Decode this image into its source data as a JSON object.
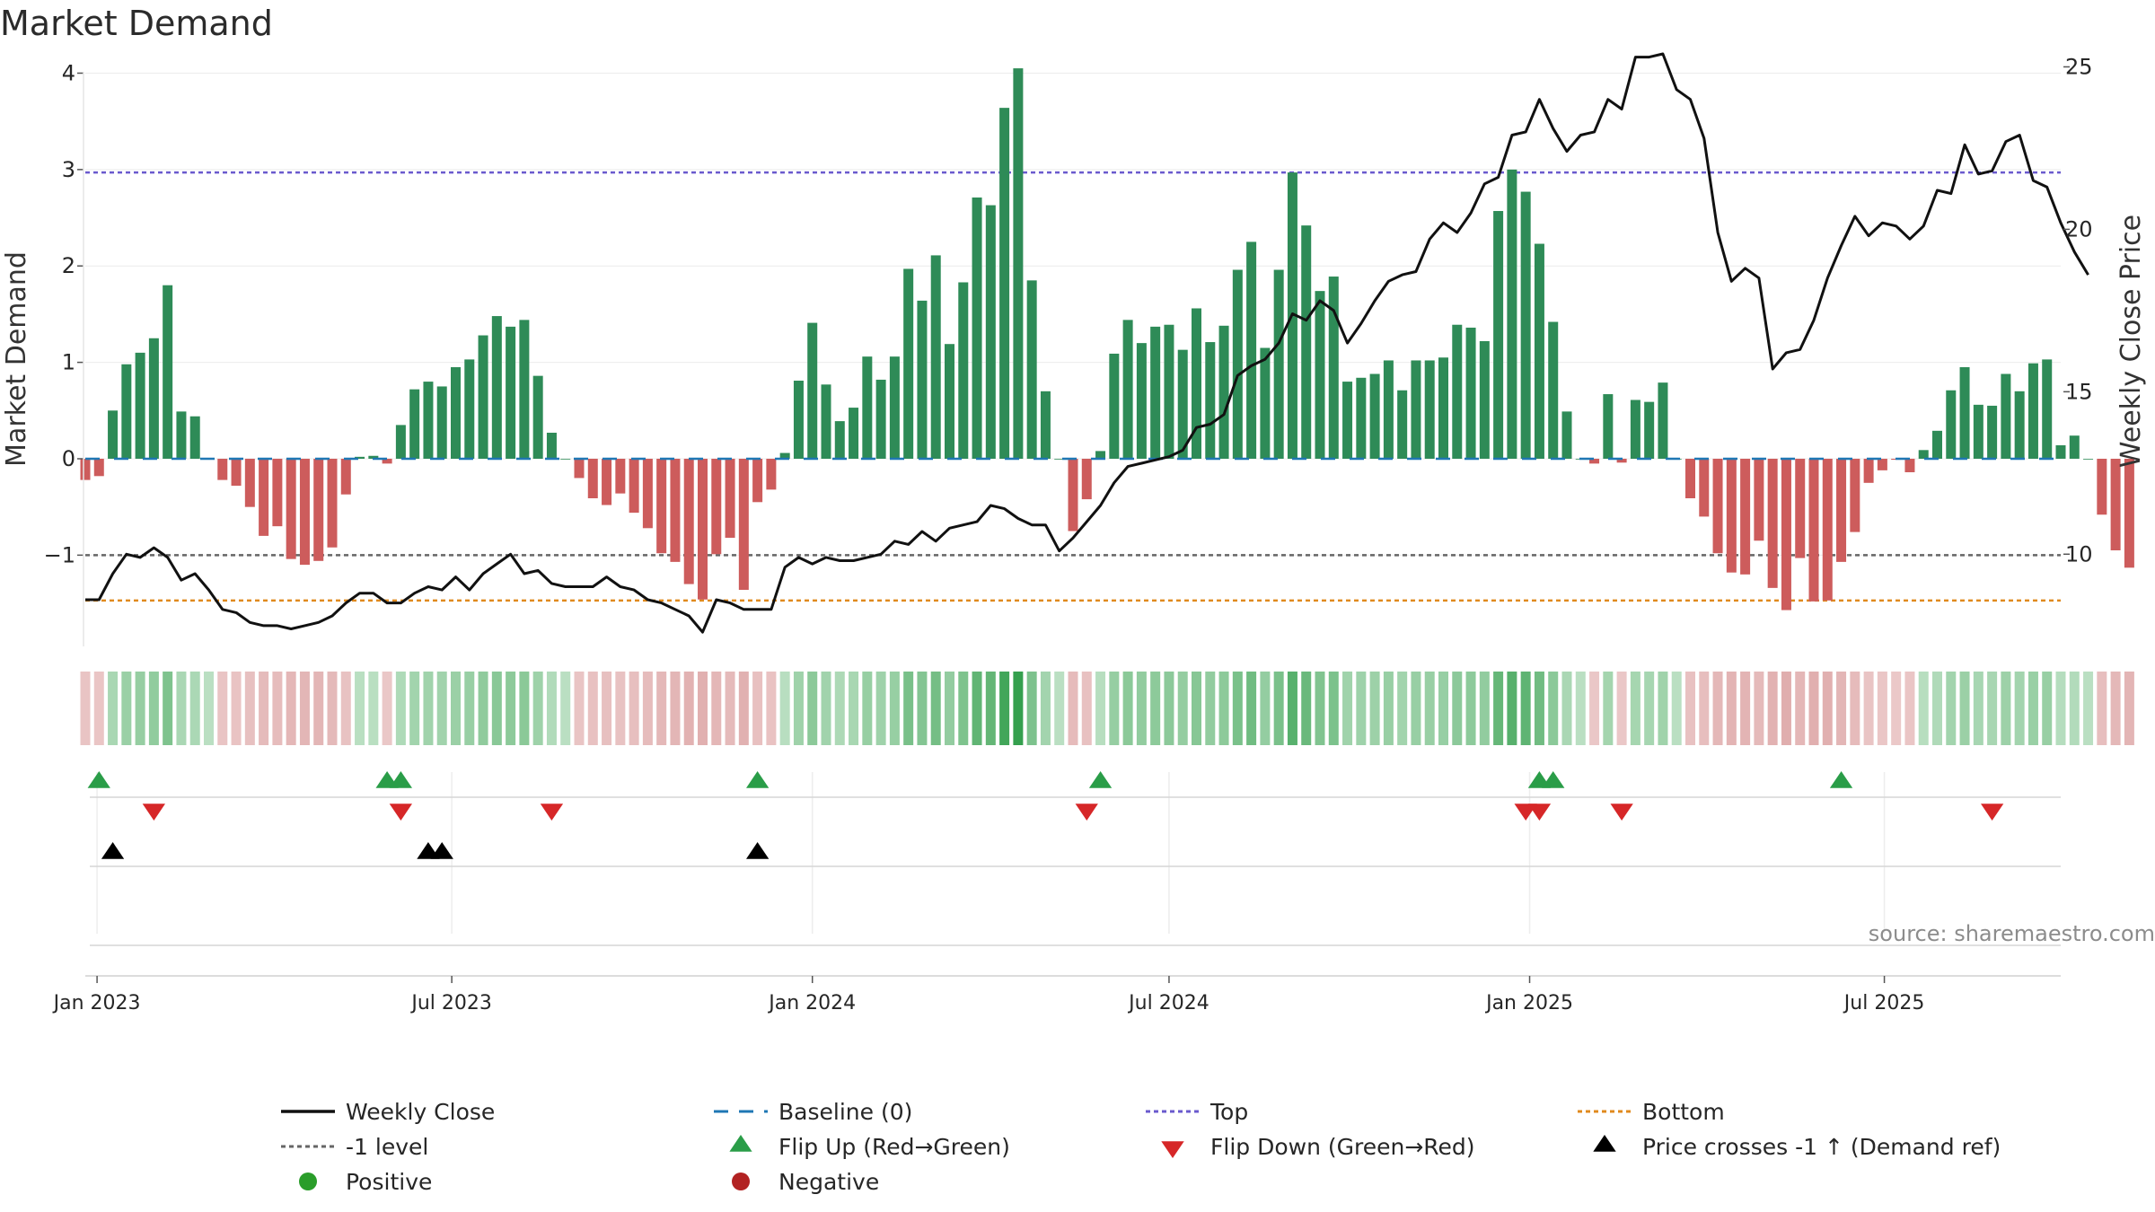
{
  "title": "Market Demand",
  "colors": {
    "positive": "#2e8b57",
    "negative": "#cd5c5c",
    "price": "#111111",
    "top": "#6a5acd",
    "bottom": "#e08a1e",
    "neg1": "#666666",
    "baseline": "#1f77b4",
    "flip_up": "#2a9d48",
    "flip_down": "#d62728",
    "cross": "#000000",
    "legend_positive": "#2a9d2a",
    "legend_negative": "#b22222"
  },
  "chart_data": {
    "type": "bar",
    "title": "Market Demand",
    "ylabel": "Market Demand",
    "y2label": "Weekly Close Price",
    "ylim": [
      -1.9,
      4.2
    ],
    "y2lim": [
      7.3,
      25.4
    ],
    "yticks": [
      -1,
      0,
      1,
      2,
      3,
      4
    ],
    "y2ticks": [
      10,
      15,
      20,
      25
    ],
    "x_start": "2022-12-26",
    "x_end": "2025-09-29",
    "xticks": [
      {
        "date": "2023-01-01",
        "label": "Jan 2023"
      },
      {
        "date": "2023-07-01",
        "label": "Jul 2023"
      },
      {
        "date": "2024-01-01",
        "label": "Jan 2024"
      },
      {
        "date": "2024-07-01",
        "label": "Jul 2024"
      },
      {
        "date": "2025-01-01",
        "label": "Jan 2025"
      },
      {
        "date": "2025-07-01",
        "label": "Jul 2025"
      }
    ],
    "top_level": 2.97,
    "bottom_level": -1.47,
    "neg1_level": -1.0,
    "start_date": "2022-12-26",
    "interval_days": 7,
    "demand": [
      -0.22,
      -0.18,
      0.5,
      0.98,
      1.1,
      1.25,
      1.8,
      0.49,
      0.44,
      0.0,
      -0.22,
      -0.28,
      -0.5,
      -0.8,
      -0.7,
      -1.04,
      -1.1,
      -1.06,
      -0.92,
      -0.37,
      0.02,
      0.03,
      -0.05,
      0.35,
      0.72,
      0.8,
      0.75,
      0.95,
      1.03,
      1.28,
      1.48,
      1.37,
      1.44,
      0.86,
      0.27,
      0.0,
      -0.2,
      -0.41,
      -0.48,
      -0.36,
      -0.56,
      -0.72,
      -0.98,
      -1.07,
      -1.3,
      -1.46,
      -0.99,
      -0.82,
      -1.36,
      -0.45,
      -0.32,
      0.06,
      0.81,
      1.41,
      0.77,
      0.39,
      0.53,
      1.06,
      0.82,
      1.06,
      1.97,
      1.64,
      2.11,
      1.19,
      1.83,
      2.71,
      2.63,
      3.64,
      4.05,
      1.85,
      0.7,
      0.0,
      -0.75,
      -0.42,
      0.08,
      1.09,
      1.44,
      1.2,
      1.37,
      1.39,
      1.13,
      1.56,
      1.21,
      1.38,
      1.96,
      2.25,
      1.15,
      1.96,
      2.97,
      2.42,
      1.74,
      1.89,
      0.8,
      0.84,
      0.88,
      1.02,
      0.71,
      1.02,
      1.02,
      1.05,
      1.39,
      1.36,
      1.22,
      2.57,
      3.0,
      2.77,
      2.23,
      1.42,
      0.49,
      0.0,
      -0.05,
      0.67,
      -0.04,
      0.61,
      0.59,
      0.79,
      0.0,
      -0.41,
      -0.6,
      -0.98,
      -1.18,
      -1.2,
      -0.85,
      -1.34,
      -1.57,
      -1.03,
      -1.48,
      -1.47,
      -1.07,
      -0.76,
      -0.25,
      -0.12,
      -0.01,
      -0.14,
      0.09,
      0.29,
      0.71,
      0.95,
      0.56,
      0.55,
      0.88,
      0.7,
      0.99,
      1.03,
      0.14,
      0.24,
      0.0,
      -0.58,
      -0.95,
      -1.13
    ],
    "price": [
      8.6,
      8.6,
      9.4,
      10.0,
      9.9,
      10.2,
      9.9,
      9.2,
      9.4,
      8.9,
      8.3,
      8.2,
      7.9,
      7.8,
      7.8,
      7.7,
      7.8,
      7.9,
      8.1,
      8.5,
      8.8,
      8.8,
      8.5,
      8.5,
      8.8,
      9.0,
      8.9,
      9.3,
      8.9,
      9.4,
      9.7,
      10.0,
      9.4,
      9.5,
      9.1,
      9.0,
      9.0,
      9.0,
      9.3,
      9.0,
      8.9,
      8.6,
      8.5,
      8.3,
      8.1,
      7.6,
      8.6,
      8.5,
      8.3,
      8.3,
      8.3,
      9.6,
      9.9,
      9.7,
      9.9,
      9.8,
      9.8,
      9.9,
      10.0,
      10.4,
      10.3,
      10.7,
      10.4,
      10.8,
      10.9,
      11.0,
      11.5,
      11.4,
      11.1,
      10.9,
      10.9,
      10.1,
      10.5,
      11.0,
      11.5,
      12.2,
      12.7,
      12.8,
      12.9,
      13.0,
      13.2,
      13.9,
      14.0,
      14.3,
      15.5,
      15.8,
      16.0,
      16.5,
      17.4,
      17.2,
      17.8,
      17.5,
      16.5,
      17.1,
      17.8,
      18.4,
      18.6,
      18.7,
      19.7,
      20.2,
      19.9,
      20.5,
      21.4,
      21.6,
      22.9,
      23.0,
      24.0,
      23.1,
      22.4,
      22.9,
      23.0,
      24.0,
      23.7,
      25.3,
      25.3,
      25.4,
      24.3,
      24.0,
      22.8,
      19.9,
      18.4,
      18.8,
      18.5,
      15.7,
      16.2,
      16.3,
      17.2,
      18.5,
      19.5,
      20.4,
      19.8,
      20.2,
      20.1,
      19.7,
      20.1,
      21.2,
      21.1,
      22.6,
      21.7,
      21.8,
      22.7,
      22.9,
      21.5,
      21.3,
      20.2,
      19.3,
      18.6
    ],
    "flip_up": [
      "2023-01-02",
      "2023-05-29",
      "2023-06-05",
      "2023-12-04",
      "2024-05-27",
      "2025-01-06",
      "2025-01-13",
      "2025-06-09"
    ],
    "flip_down": [
      "2023-01-30",
      "2023-06-05",
      "2023-08-21",
      "2024-05-20",
      "2024-12-30",
      "2025-01-06",
      "2025-02-17",
      "2025-08-25"
    ],
    "price_cross": [
      "2023-01-09",
      "2023-06-19",
      "2023-06-26",
      "2023-12-04"
    ]
  },
  "legend": {
    "weekly_close": "Weekly Close",
    "baseline": "Baseline (0)",
    "top": "Top",
    "bottom": "Bottom",
    "neg1": "-1 level",
    "flip_up": "Flip Up (Red→Green)",
    "flip_down": "Flip Down (Green→Red)",
    "cross": "Price crosses -1 ↑ (Demand ref)",
    "positive": "Positive",
    "negative": "Negative"
  },
  "source": "source: sharemaestro.com"
}
